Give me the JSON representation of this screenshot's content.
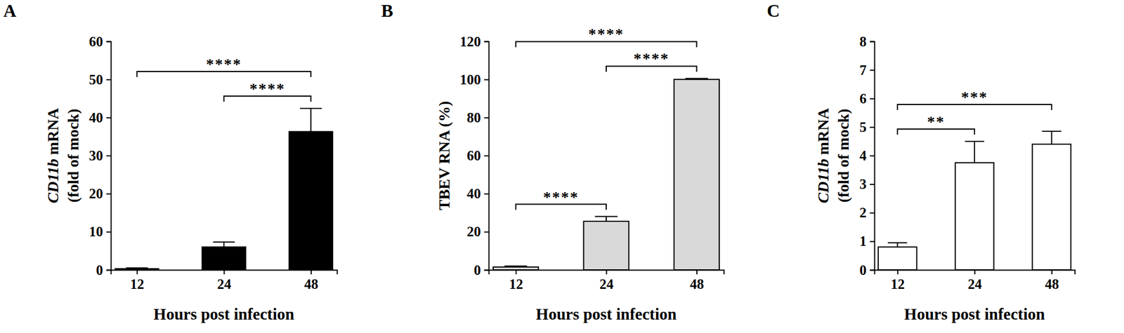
{
  "chart_data": [
    {
      "type": "bar",
      "panel": "A",
      "categories": [
        "12",
        "24",
        "48"
      ],
      "values": [
        0.3,
        6,
        36.3
      ],
      "errors": [
        0.2,
        1.3,
        6.1
      ],
      "color": "#000000",
      "ylim": [
        0,
        60
      ],
      "yticks": [
        0,
        10,
        20,
        30,
        40,
        50,
        60
      ],
      "x_label": "Hours post infection",
      "y_label": [
        [
          "CD11b",
          " mRNA"
        ],
        [
          "(fold of mock)"
        ]
      ],
      "annotations": [
        {
          "from": "24",
          "to": "48",
          "text": "****"
        },
        {
          "from": "12",
          "to": "48",
          "text": "****"
        }
      ]
    },
    {
      "type": "bar",
      "panel": "B",
      "categories": [
        "12",
        "24",
        "48"
      ],
      "values": [
        1.5,
        25.5,
        100
      ],
      "errors": [
        0.5,
        2.5,
        0.5
      ],
      "color": "#d9d9d9",
      "ylim": [
        0,
        120
      ],
      "yticks": [
        0,
        20,
        40,
        60,
        80,
        100,
        120
      ],
      "x_label": "Hours post infection",
      "y_label": [
        [
          "TBEV RNA (%)"
        ]
      ],
      "annotations": [
        {
          "from": "12",
          "to": "24",
          "text": "****"
        },
        {
          "from": "24",
          "to": "48",
          "text": "****"
        },
        {
          "from": "12",
          "to": "48",
          "text": "****"
        }
      ]
    },
    {
      "type": "bar",
      "panel": "C",
      "categories": [
        "12",
        "24",
        "48"
      ],
      "values": [
        0.8,
        3.75,
        4.4
      ],
      "errors": [
        0.15,
        0.75,
        0.45
      ],
      "color": "#ffffff",
      "ylim": [
        0,
        8
      ],
      "yticks": [
        0,
        1,
        2,
        3,
        4,
        5,
        6,
        7,
        8
      ],
      "x_label": "Hours post infection",
      "y_label": [
        [
          "CD11b",
          " mRNA"
        ],
        [
          "(fold of mock)"
        ]
      ],
      "annotations": [
        {
          "from": "12",
          "to": "24",
          "text": "**"
        },
        {
          "from": "12",
          "to": "48",
          "text": "***"
        }
      ]
    }
  ]
}
